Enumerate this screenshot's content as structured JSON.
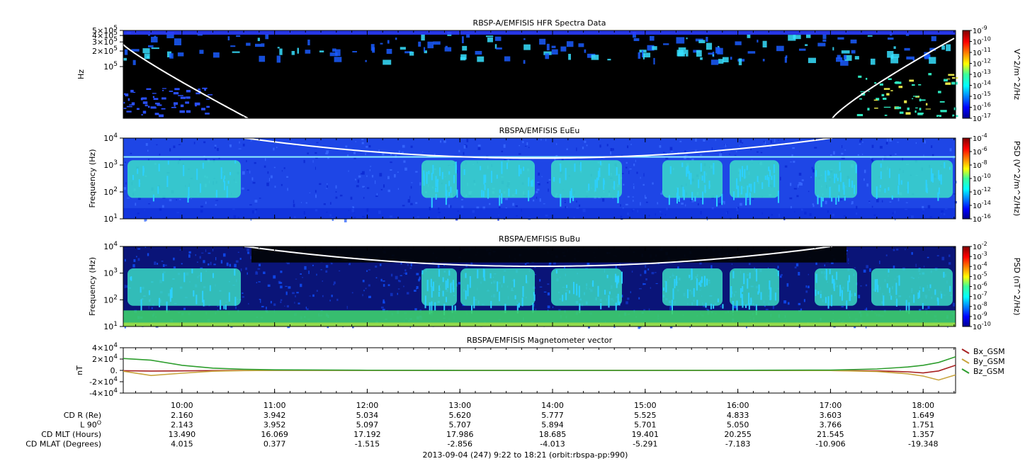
{
  "chart_data": [
    {
      "type": "heatmap",
      "title": "RBSP-A/EMFISIS  HFR Spectra Data",
      "ylabel": "Hz",
      "y_scale": "log",
      "ylim": [
        10000,
        500000
      ],
      "y_ticks": [
        {
          "v": 500000,
          "m": "5",
          "e": "5"
        },
        {
          "v": 400000,
          "m": "4",
          "e": "5"
        },
        {
          "v": 300000,
          "m": "3",
          "e": "5"
        },
        {
          "v": 200000,
          "m": "2",
          "e": "5"
        },
        {
          "v": 100000,
          "m": "",
          "e": "5"
        }
      ],
      "colorbar": {
        "label": "V^2/m^2/Hz",
        "exponents": [
          "-9",
          "-10",
          "-11",
          "-12",
          "-13",
          "-14",
          "-15",
          "-16",
          "-17"
        ]
      },
      "overlay_curve": {
        "name": "",
        "color": "#ffffff"
      }
    },
    {
      "type": "heatmap",
      "title": "RBSPA/EMFISIS  EuEu",
      "ylabel": "Frequency (Hz)",
      "y_scale": "log",
      "ylim": [
        10,
        10000
      ],
      "y_ticks": [
        {
          "v": 10000,
          "m": "",
          "e": "4"
        },
        {
          "v": 1000,
          "m": "",
          "e": "3"
        },
        {
          "v": 100,
          "m": "",
          "e": "2"
        },
        {
          "v": 10,
          "m": "",
          "e": "1"
        }
      ],
      "colorbar": {
        "label": "PSD (V^2/m^2/Hz)",
        "exponents": [
          "-4",
          "-6",
          "-8",
          "-10",
          "-12",
          "-14",
          "-16"
        ]
      },
      "overlay_curve": {
        "name": "",
        "color": "#ffffff"
      }
    },
    {
      "type": "heatmap",
      "title": "RBSPA/EMFISIS  BuBu",
      "ylabel": "Frequency (Hz)",
      "y_scale": "log",
      "ylim": [
        10,
        10000
      ],
      "y_ticks": [
        {
          "v": 10000,
          "m": "",
          "e": "4"
        },
        {
          "v": 1000,
          "m": "",
          "e": "3"
        },
        {
          "v": 100,
          "m": "",
          "e": "2"
        },
        {
          "v": 10,
          "m": "",
          "e": "1"
        }
      ],
      "colorbar": {
        "label": "PSD (nT^2/Hz)",
        "exponents": [
          "-2",
          "-3",
          "-4",
          "-5",
          "-6",
          "-7",
          "-8",
          "-9",
          "-10"
        ]
      },
      "overlay_curve": {
        "name": "",
        "color": "#ffffff"
      }
    },
    {
      "type": "line",
      "title": "RBSPA/EMFISIS  Magnetometer vector",
      "ylabel": "nT",
      "ylim": [
        -40000,
        40000
      ],
      "y_ticks": [
        {
          "v": 40000,
          "m": "4",
          "e": "4"
        },
        {
          "v": 20000,
          "m": "2",
          "e": "4"
        },
        {
          "v": 0,
          "m": "0.",
          "e": ""
        },
        {
          "v": -20000,
          "m": "-2",
          "e": "4"
        },
        {
          "v": -40000,
          "m": "-4",
          "e": "4"
        }
      ],
      "x": [
        "09:22",
        "09:40",
        "10:00",
        "10:20",
        "10:40",
        "11:00",
        "12:00",
        "13:00",
        "14:00",
        "15:00",
        "16:00",
        "17:00",
        "17:30",
        "17:50",
        "18:00",
        "18:10",
        "18:21"
      ],
      "series": [
        {
          "name": "Bx_GSM",
          "color": "#a82222",
          "values": [
            -600,
            -1200,
            -900,
            -300,
            -100,
            0,
            0,
            0,
            0,
            0,
            0,
            -200,
            -800,
            -2500,
            -4500,
            -1000,
            9000
          ]
        },
        {
          "name": "By_GSM",
          "color": "#c8a43c",
          "values": [
            -1500,
            -9000,
            -5000,
            -1500,
            -400,
            0,
            0,
            0,
            0,
            0,
            0,
            -300,
            -2000,
            -6000,
            -10000,
            -17000,
            -8000
          ]
        },
        {
          "name": "Bz_GSM",
          "color": "#2e9e2e",
          "values": [
            21000,
            18000,
            9000,
            4000,
            2000,
            1000,
            300,
            0,
            0,
            0,
            200,
            600,
            2500,
            6000,
            9000,
            14000,
            24000
          ]
        }
      ]
    }
  ],
  "x_axis": {
    "start": "09:22",
    "end": "18:21",
    "ticks": [
      "10:00",
      "11:00",
      "12:00",
      "13:00",
      "14:00",
      "15:00",
      "16:00",
      "17:00",
      "18:00"
    ]
  },
  "ephemeris": {
    "rows": [
      {
        "label": "CD R (Re)",
        "sup": "",
        "values": [
          "2.160",
          "3.942",
          "5.034",
          "5.620",
          "5.777",
          "5.525",
          "4.833",
          "3.603",
          "1.649"
        ]
      },
      {
        "label": "L 90",
        "sup": "O",
        "values": [
          "2.143",
          "3.952",
          "5.097",
          "5.707",
          "5.894",
          "5.701",
          "5.050",
          "3.766",
          "1.751"
        ]
      },
      {
        "label": "CD MLT (Hours)",
        "sup": "",
        "values": [
          "13.490",
          "16.069",
          "17.192",
          "17.986",
          "18.685",
          "19.401",
          "20.255",
          "21.545",
          "1.357"
        ]
      },
      {
        "label": "CD MLAT (Degrees)",
        "sup": "",
        "values": [
          "4.015",
          "0.377",
          "-1.515",
          "-2.856",
          "-4.013",
          "-5.291",
          "-7.183",
          "-10.906",
          "-19.348"
        ]
      }
    ]
  },
  "footer": "2013-09-04 (247) 9:22 to 18:21 (orbit:rbspa-pp:990)"
}
